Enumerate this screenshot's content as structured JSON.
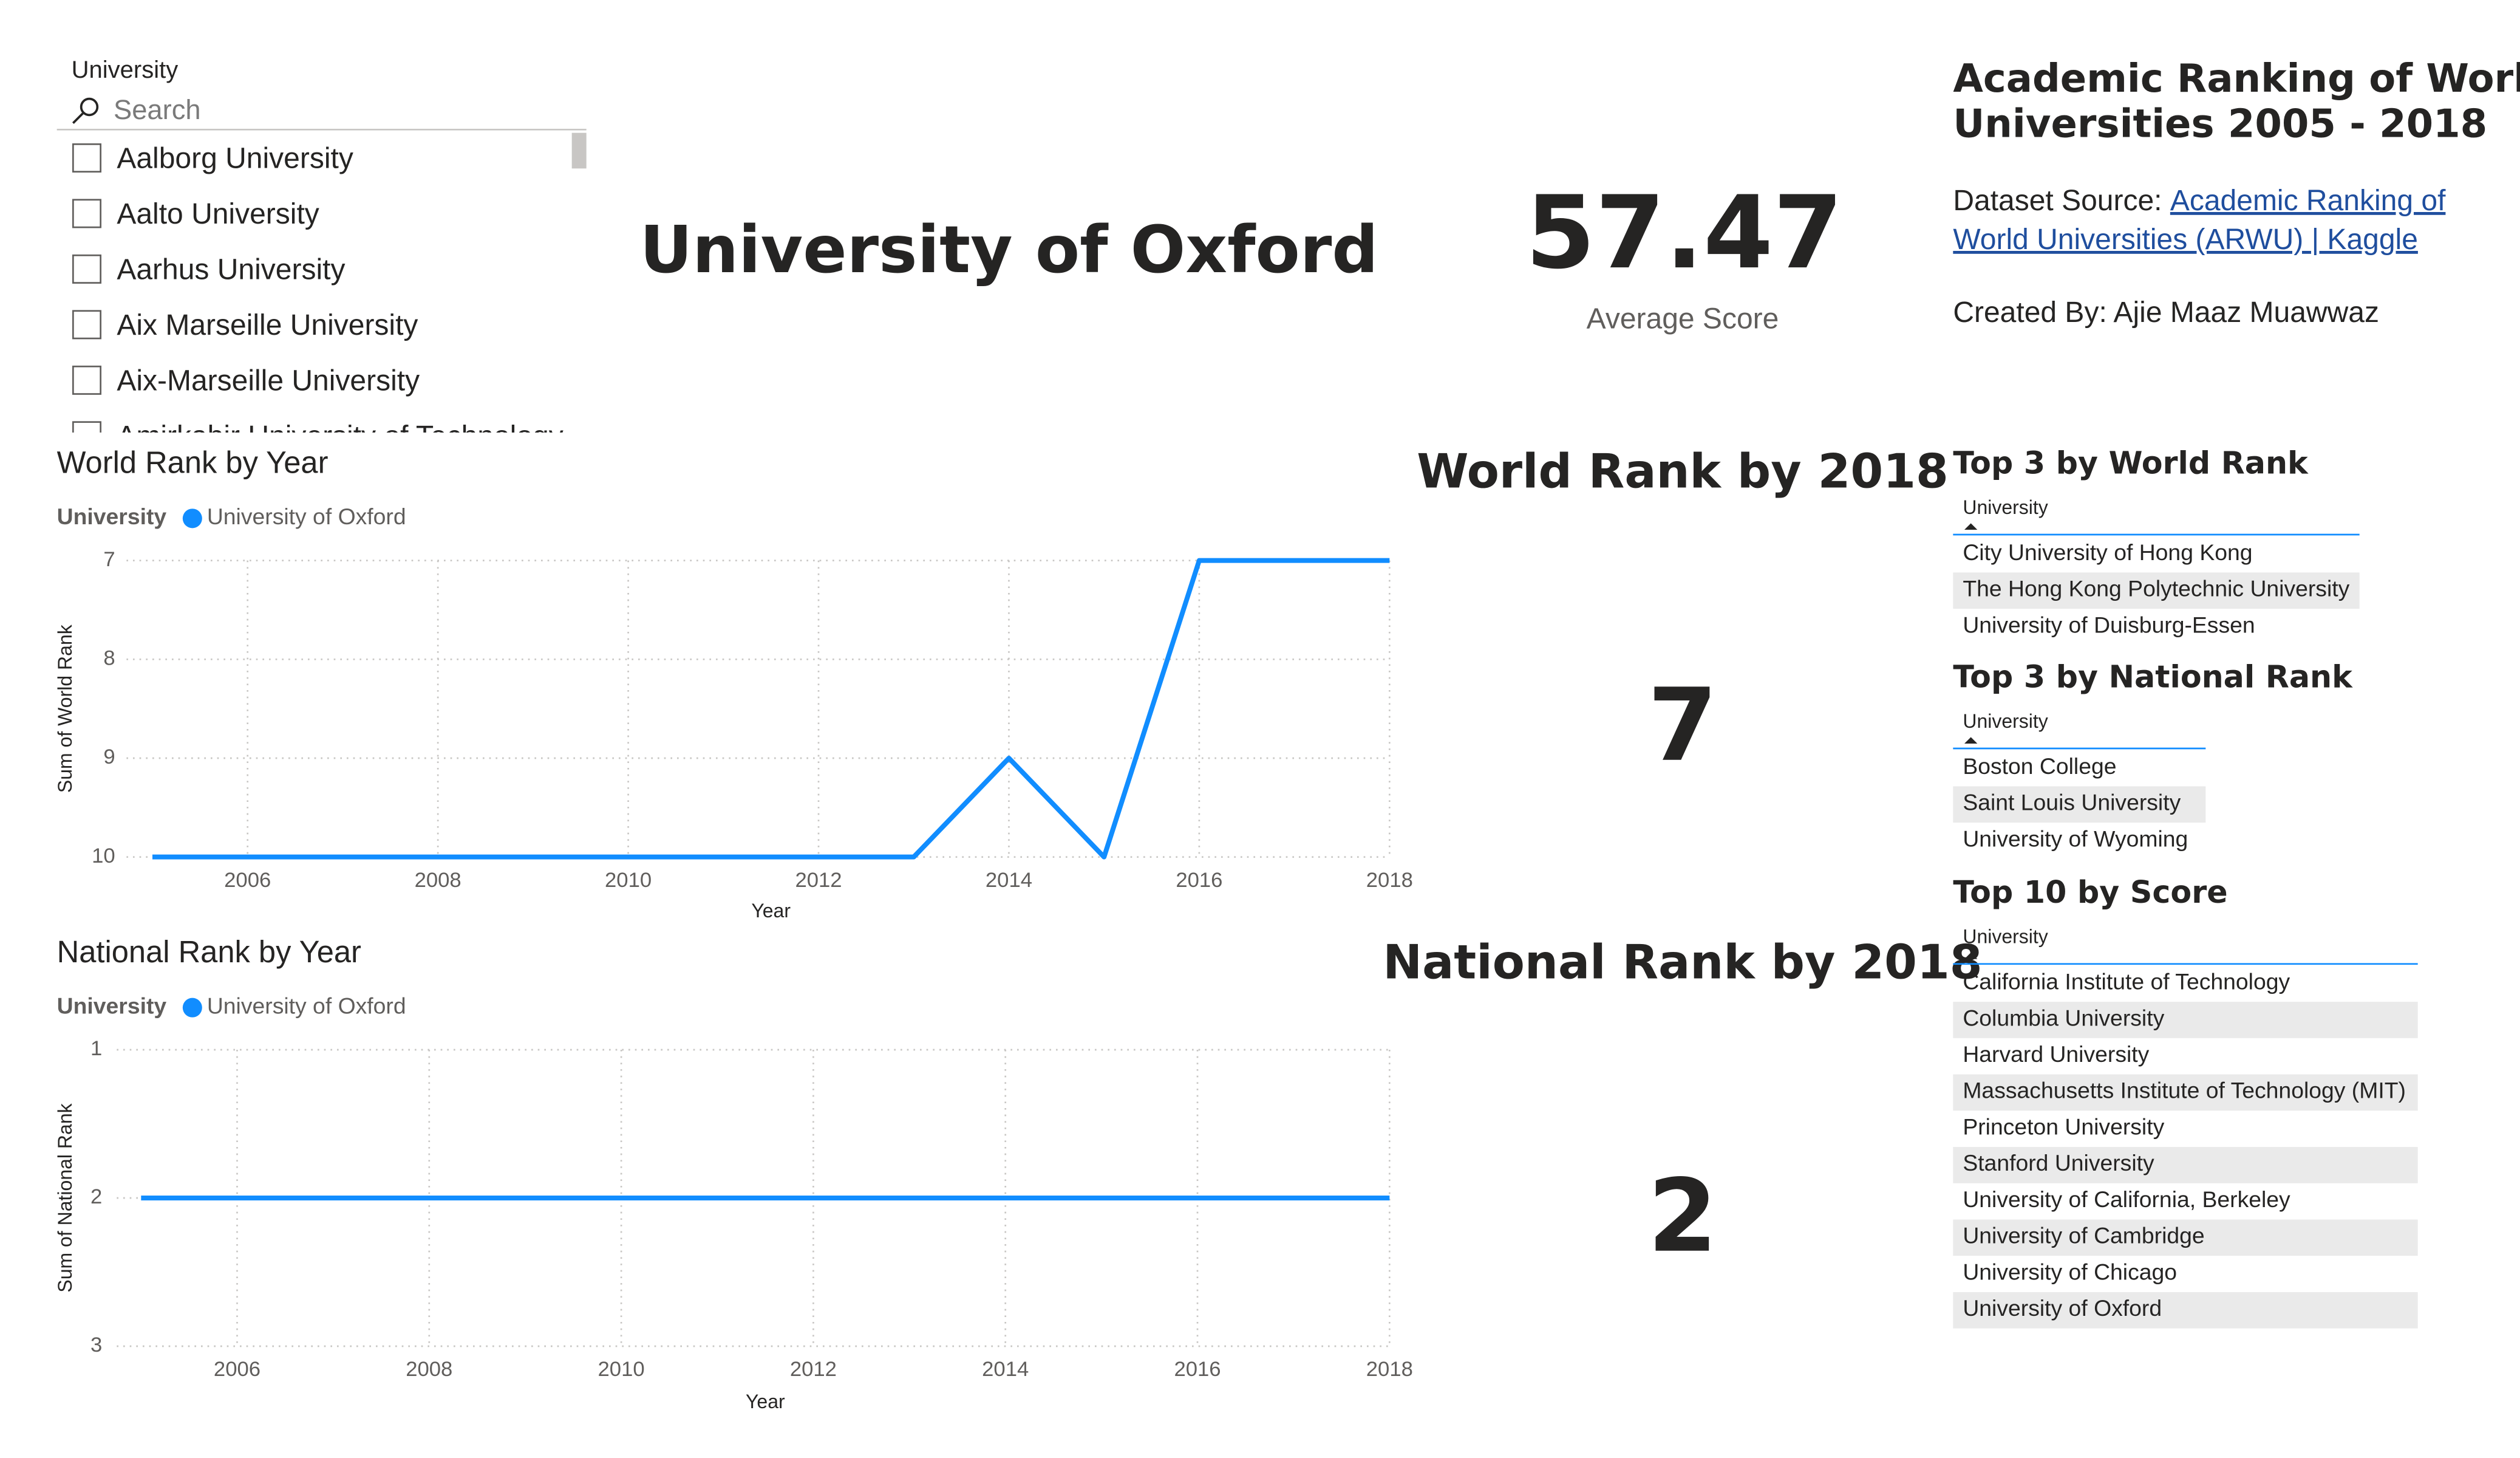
{
  "slicer": {
    "title": "University",
    "search_placeholder": "Search",
    "items": [
      "Aalborg University",
      "Aalto University",
      "Aarhus University",
      "Aix Marseille University",
      "Aix-Marseille University",
      "Amirkabir University of Technology"
    ]
  },
  "header": {
    "title": "University of Oxford"
  },
  "kpi": {
    "value": 57.47,
    "label": "Average Score"
  },
  "info": {
    "title_lines": [
      "Academic Ranking of World",
      "Universities 2005 - 2018"
    ],
    "source_label": "Dataset Source:",
    "source_link_lines": [
      "Academic Ranking of",
      "World Universities (ARWU) | Kaggle"
    ],
    "created_by": "Created By: Ajie Maaz Muawwaz"
  },
  "cards": [
    {
      "title": "World Rank by 2018",
      "value": 7
    },
    {
      "title": "National Rank by 2018",
      "value": 2
    }
  ],
  "tables": [
    {
      "title": "Top 3 by World Rank",
      "header": "University",
      "rows": [
        "City University of Hong Kong",
        "The Hong Kong Polytechnic University",
        "University of Duisburg-Essen"
      ]
    },
    {
      "title": "Top 3 by National Rank",
      "header": "University",
      "rows": [
        "Boston College",
        "Saint Louis University",
        "University of Wyoming"
      ]
    },
    {
      "title": "Top 10 by Score",
      "header": "University",
      "rows": [
        "California Institute of Technology",
        "Columbia University",
        "Harvard University",
        "Massachusetts Institute of Technology (MIT)",
        "Princeton University",
        "Stanford University",
        "University of California, Berkeley",
        "University of Cambridge",
        "University of Chicago",
        "University of Oxford"
      ]
    }
  ],
  "chart_data": [
    {
      "type": "line",
      "title": "World Rank by Year",
      "legend_title": "University",
      "x_label": "Year",
      "y_label": "Sum of World Rank",
      "x": [
        2005,
        2006,
        2007,
        2008,
        2009,
        2010,
        2011,
        2012,
        2013,
        2014,
        2015,
        2016,
        2017,
        2018
      ],
      "series": [
        {
          "name": "University of Oxford",
          "color": "#118DFF",
          "values": [
            10,
            10,
            10,
            10,
            10,
            10,
            10,
            10,
            10,
            9,
            10,
            7,
            7,
            7
          ]
        }
      ],
      "xlim": [
        2005,
        2018
      ],
      "ylim": [
        10,
        7
      ],
      "xticks": [
        2006,
        2008,
        2010,
        2012,
        2014,
        2016,
        2018
      ],
      "yticks": [
        7,
        8,
        9,
        10
      ],
      "grid": true
    },
    {
      "type": "line",
      "title": "National Rank by Year",
      "legend_title": "University",
      "x_label": "Year",
      "y_label": "Sum of National Rank",
      "x": [
        2005,
        2006,
        2007,
        2008,
        2009,
        2010,
        2011,
        2012,
        2013,
        2014,
        2015,
        2016,
        2017,
        2018
      ],
      "series": [
        {
          "name": "University of Oxford",
          "color": "#118DFF",
          "values": [
            2,
            2,
            2,
            2,
            2,
            2,
            2,
            2,
            2,
            2,
            2,
            2,
            2,
            2
          ]
        }
      ],
      "xlim": [
        2005,
        2018
      ],
      "ylim": [
        3,
        1
      ],
      "xticks": [
        2006,
        2008,
        2010,
        2012,
        2014,
        2016,
        2018
      ],
      "yticks": [
        1,
        2,
        3
      ],
      "grid": true
    }
  ]
}
